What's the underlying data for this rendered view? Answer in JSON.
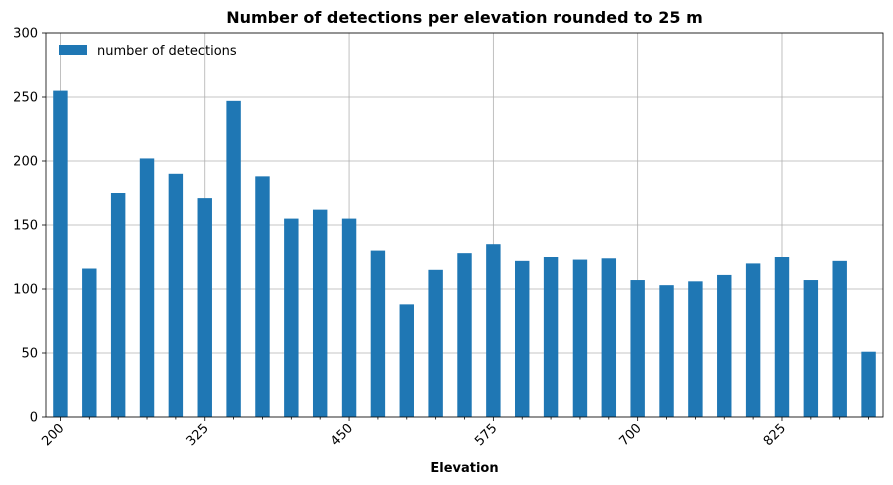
{
  "chart_data": {
    "type": "bar",
    "title": "Number of detections per elevation rounded to 25 m",
    "xlabel": "Elevation",
    "ylabel": "",
    "categories": [
      200,
      225,
      250,
      275,
      300,
      325,
      350,
      375,
      400,
      425,
      450,
      475,
      500,
      525,
      550,
      575,
      600,
      625,
      650,
      675,
      700,
      725,
      750,
      775,
      800,
      825,
      850,
      875,
      900
    ],
    "series": [
      {
        "name": "number of detections",
        "values": [
          255,
          116,
          175,
          202,
          190,
          171,
          247,
          188,
          155,
          162,
          155,
          130,
          88,
          115,
          128,
          135,
          122,
          125,
          123,
          124,
          107,
          103,
          106,
          111,
          120,
          125,
          107,
          122,
          51
        ]
      }
    ],
    "ylim": [
      0,
      300
    ],
    "yticks": [
      0,
      50,
      100,
      150,
      200,
      250,
      300
    ],
    "xtick_labels": [
      "200",
      "325",
      "450",
      "575",
      "700",
      "825"
    ],
    "grid": true,
    "legend": "upper-left",
    "colors": {
      "bar": "#1f77b4"
    }
  }
}
